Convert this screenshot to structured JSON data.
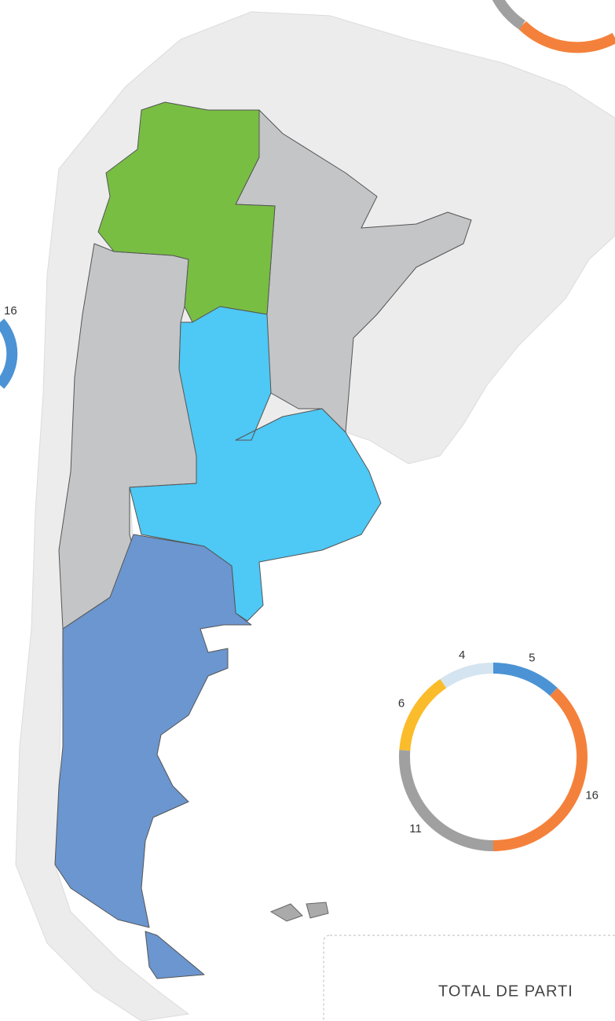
{
  "map": {
    "labels": [
      "16"
    ]
  },
  "chart_data": {
    "type": "donut",
    "categories": [
      "5",
      "16",
      "11",
      "6",
      "4"
    ],
    "values": [
      5,
      16,
      11,
      6,
      4
    ],
    "colors": [
      "#4b93d4",
      "#f4813b",
      "#a0a0a0",
      "#fbbc2b",
      "#d4e4f0"
    ]
  },
  "footer": {
    "title": "TOTAL DE PARTI"
  }
}
